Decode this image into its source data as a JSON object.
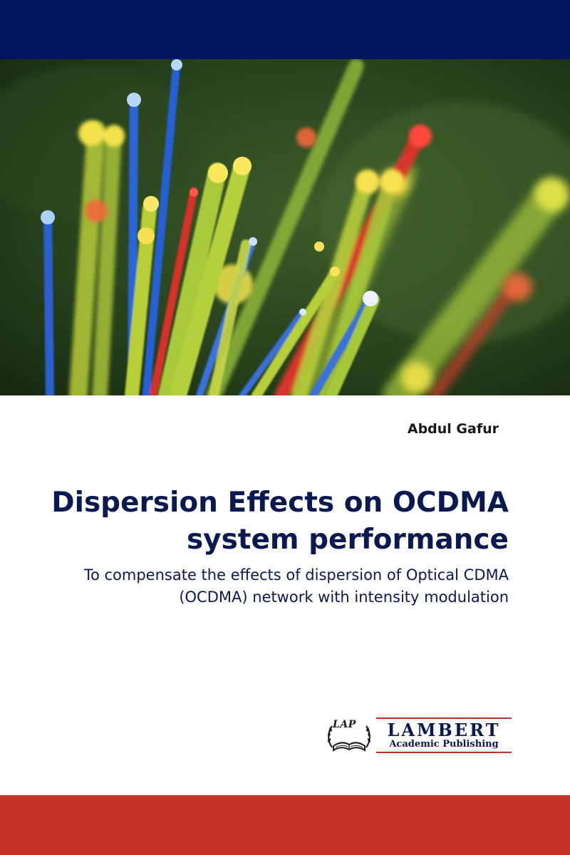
{
  "colors": {
    "top_band": "#041461",
    "bottom_band": "#c7312a",
    "title_color": "#0a1950",
    "author_color": "#1a1a1a"
  },
  "cover_image": {
    "subject": "optical-fiber-strands"
  },
  "author": "Abdul Gafur",
  "title": "Dispersion Effects on OCDMA system performance",
  "subtitle": "To compensate the effects of dispersion of Optical CDMA (OCDMA) network with intensity modulation",
  "publisher": {
    "badge": "LAP",
    "name": "LAMBERT",
    "subline": "Academic Publishing",
    "emblem_icon": "open-book-laurel-icon"
  }
}
